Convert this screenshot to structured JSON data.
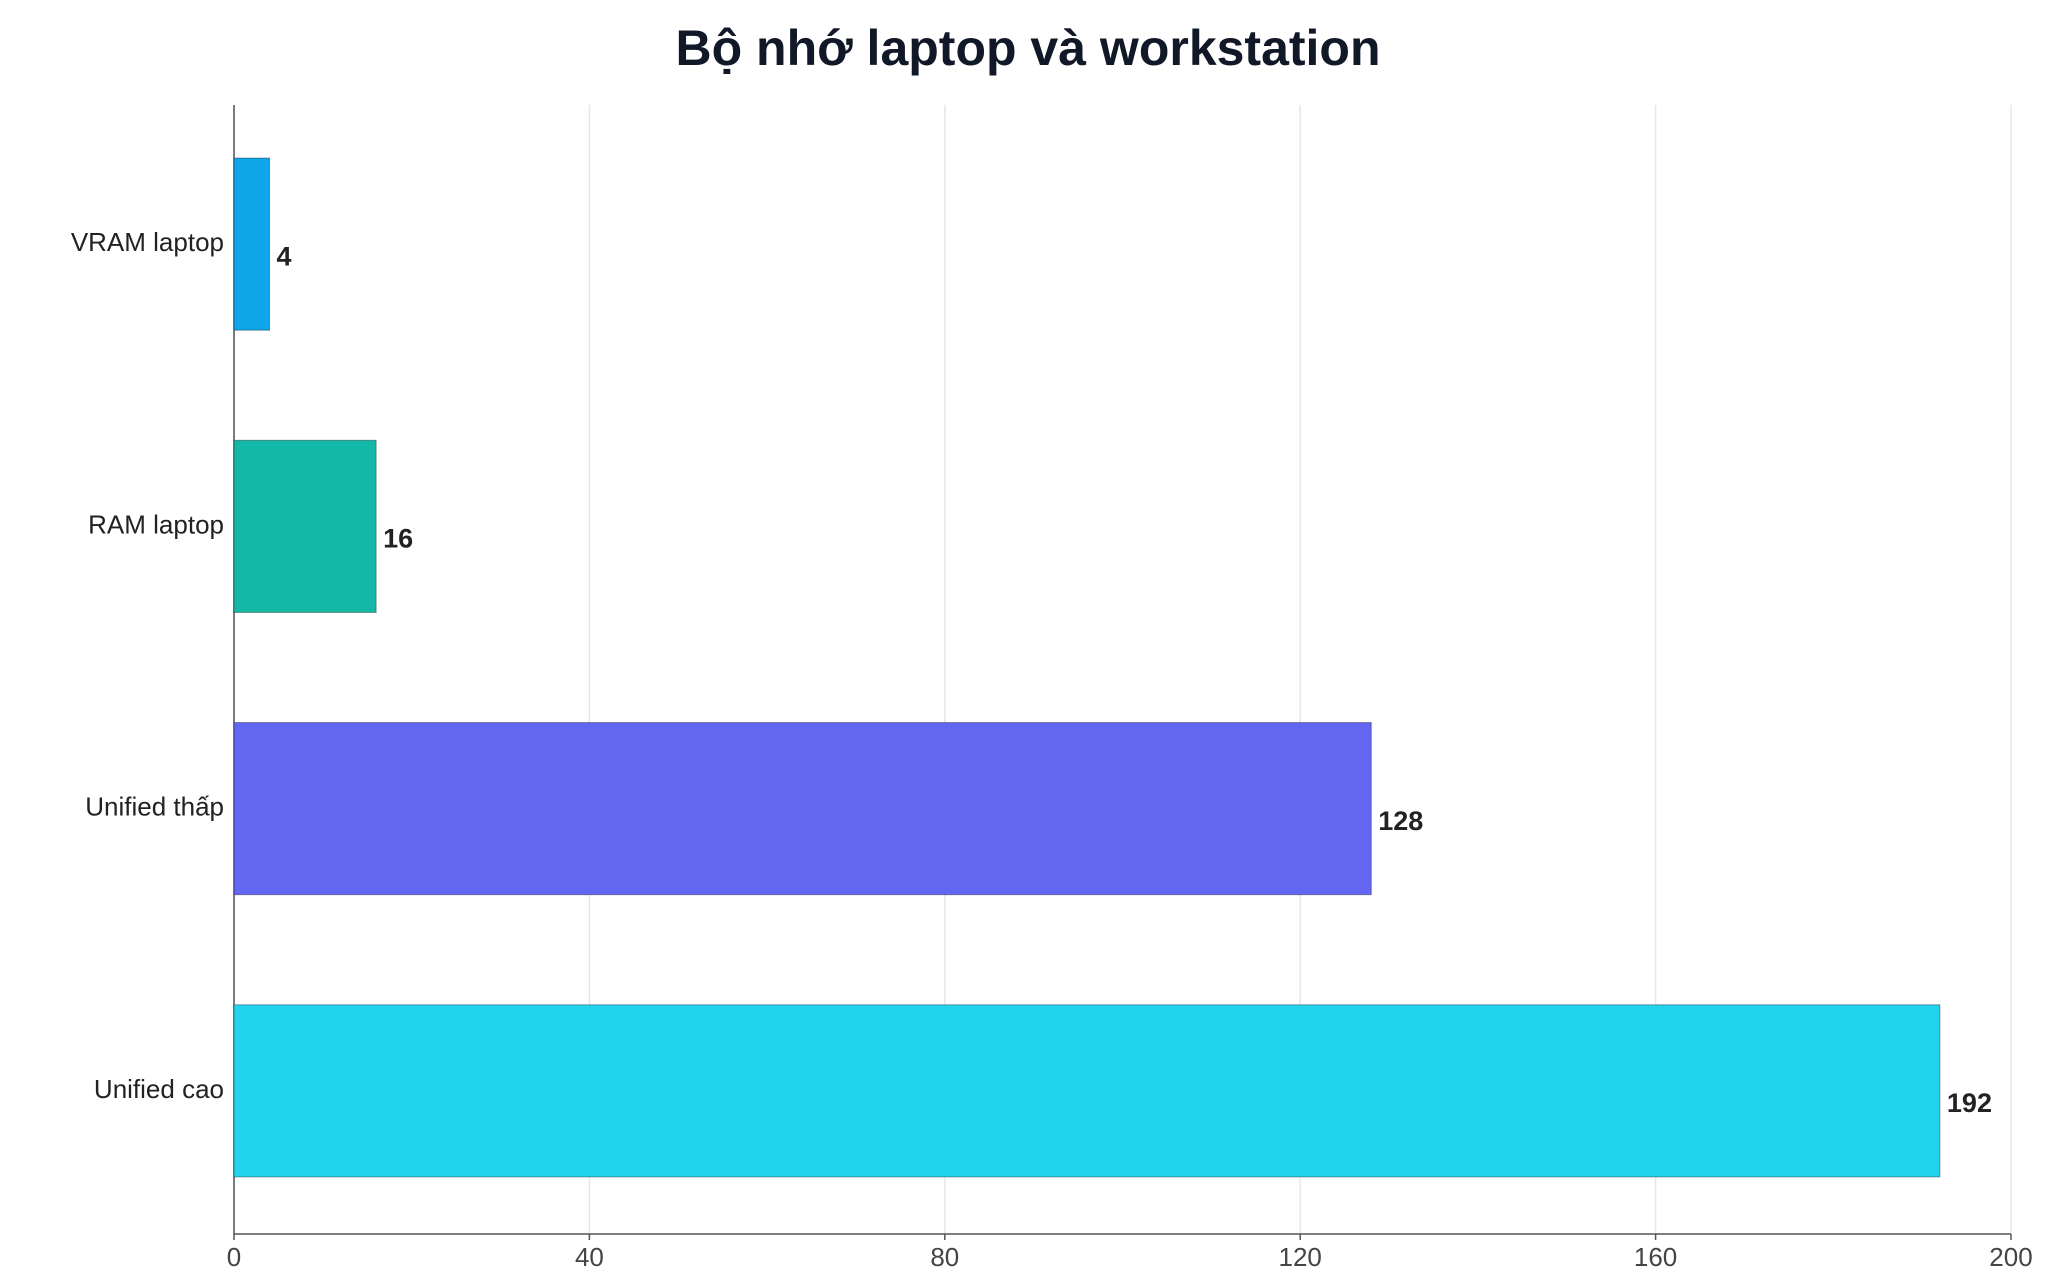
{
  "chart_data": {
    "type": "bar",
    "orientation": "horizontal",
    "title": "Bộ nhớ laptop và workstation",
    "categories": [
      "VRAM laptop",
      "RAM laptop",
      "Unified thấp",
      "Unified cao"
    ],
    "values": [
      4,
      16,
      128,
      192
    ],
    "colors": [
      "#0ea5e9",
      "#14b8a6",
      "#6366f1",
      "#22d3ee"
    ],
    "xlim": [
      0,
      200
    ],
    "xticks": [
      0,
      40,
      80,
      120,
      160,
      200
    ],
    "grid": true
  }
}
